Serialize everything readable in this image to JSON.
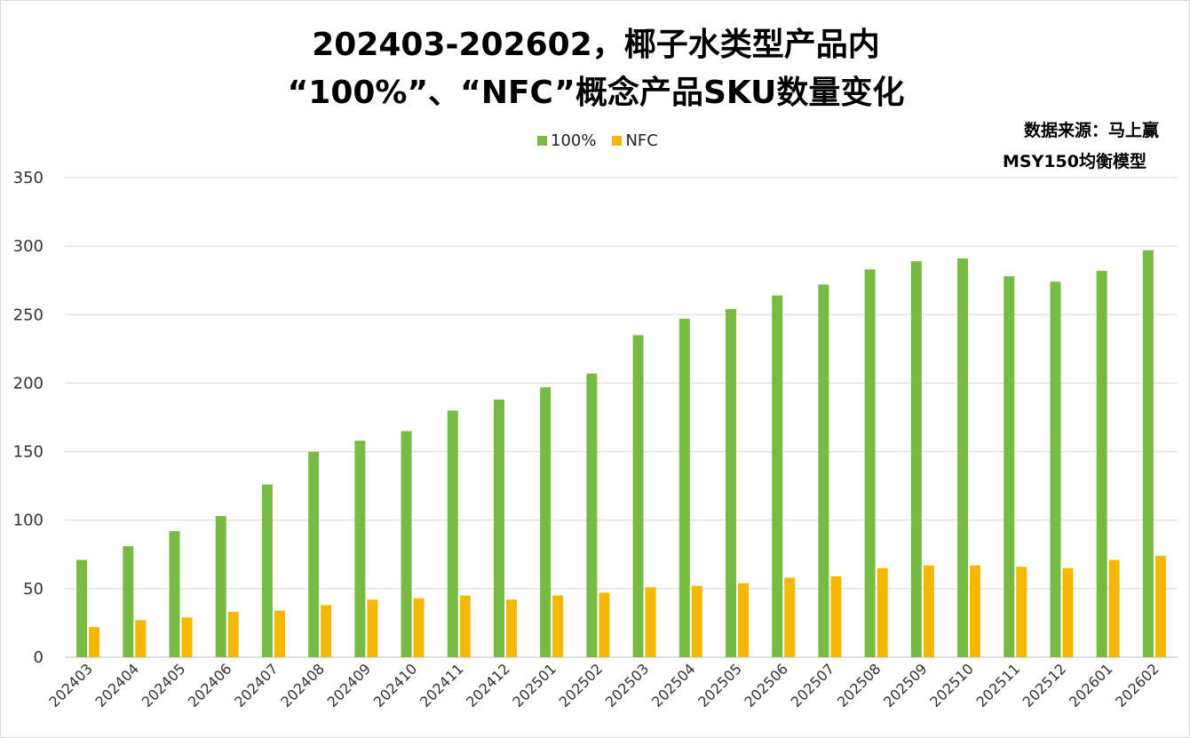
{
  "title_line1": "202403-202602，椰子水类型产品内",
  "title_line2": "“100%”、“NFC”概念产品SKU数量变化",
  "source_line1": "数据来源：马上赢",
  "source_line2": "MSY150均衡模型",
  "chart_data": {
    "type": "bar",
    "categories": [
      "202403",
      "202404",
      "202405",
      "202406",
      "202407",
      "202408",
      "202409",
      "202410",
      "202411",
      "202412",
      "202501",
      "202502",
      "202503",
      "202504",
      "202505",
      "202506",
      "202507",
      "202508",
      "202509",
      "202510",
      "202511",
      "202512",
      "202601",
      "202602"
    ],
    "series": [
      {
        "name": "100%",
        "color": "#77bb44",
        "values": [
          71,
          81,
          92,
          103,
          126,
          150,
          158,
          165,
          180,
          188,
          197,
          207,
          235,
          247,
          254,
          264,
          272,
          283,
          289,
          291,
          278,
          274,
          282,
          297
        ]
      },
      {
        "name": "NFC",
        "color": "#f5b800",
        "values": [
          22,
          27,
          29,
          33,
          34,
          38,
          42,
          43,
          45,
          42,
          45,
          47,
          51,
          52,
          54,
          58,
          59,
          65,
          67,
          67,
          66,
          65,
          71,
          74
        ]
      }
    ],
    "ylim": [
      0,
      350
    ],
    "yticks": [
      0,
      50,
      100,
      150,
      200,
      250,
      300,
      350
    ],
    "grid": true,
    "legend_position": "top-center"
  }
}
